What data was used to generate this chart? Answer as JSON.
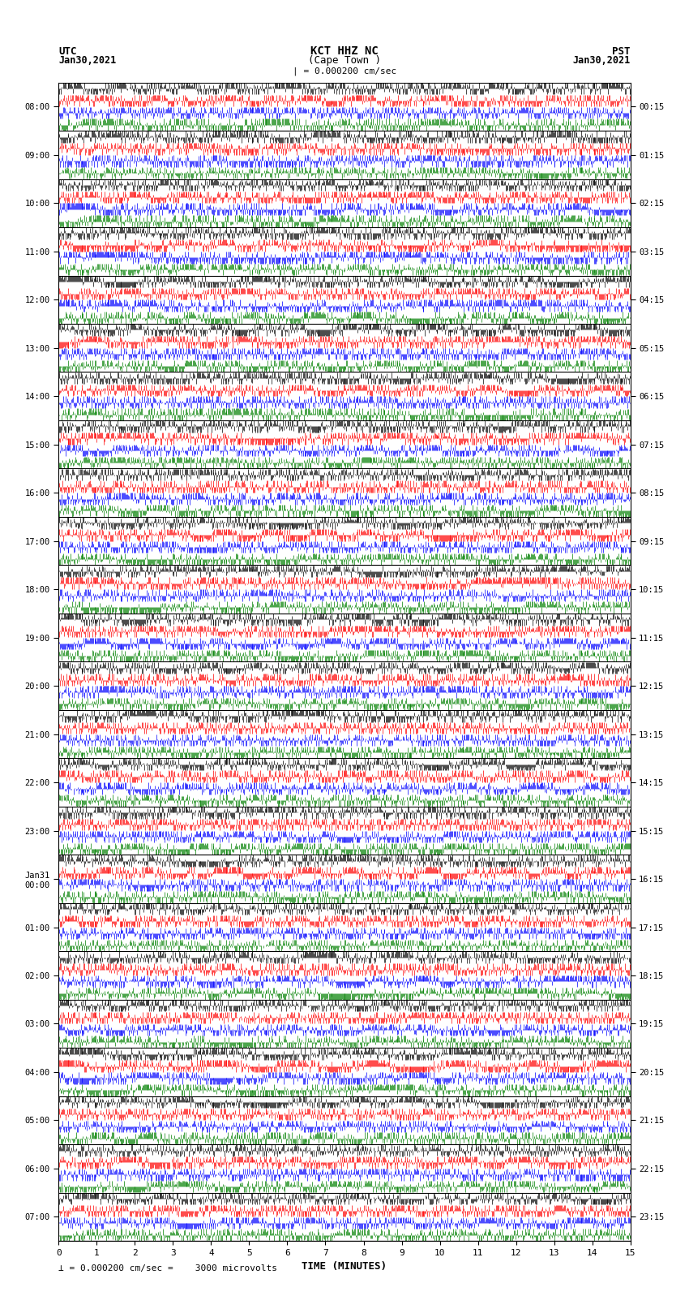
{
  "title_line1": "KCT HHZ NC",
  "title_line2": "(Cape Town )",
  "title_line3": "| = 0.000200 cm/sec",
  "label_utc": "UTC",
  "label_pst": "PST",
  "date_left": "Jan30,2021",
  "date_right": "Jan30,2021",
  "left_yticks": [
    "08:00",
    "09:00",
    "10:00",
    "11:00",
    "12:00",
    "13:00",
    "14:00",
    "15:00",
    "16:00",
    "17:00",
    "18:00",
    "19:00",
    "20:00",
    "21:00",
    "22:00",
    "23:00",
    "Jan31\n00:00",
    "01:00",
    "02:00",
    "03:00",
    "04:00",
    "05:00",
    "06:00",
    "07:00"
  ],
  "right_yticks": [
    "00:15",
    "01:15",
    "02:15",
    "03:15",
    "04:15",
    "05:15",
    "06:15",
    "07:15",
    "08:15",
    "09:15",
    "10:15",
    "11:15",
    "12:15",
    "13:15",
    "14:15",
    "15:15",
    "16:15",
    "17:15",
    "18:15",
    "19:15",
    "20:15",
    "21:15",
    "22:15",
    "23:15"
  ],
  "xlabel": "TIME (MINUTES)",
  "xticks": [
    0,
    1,
    2,
    3,
    4,
    5,
    6,
    7,
    8,
    9,
    10,
    11,
    12,
    13,
    14,
    15
  ],
  "scalebar_text": " = 0.000200 cm/sec =    3000 microvolts",
  "n_rows": 24,
  "n_cols": 750,
  "minutes_per_row": 15,
  "colors": [
    "black",
    "red",
    "blue",
    "green"
  ],
  "n_subrows": 4,
  "background_color": "white",
  "fig_width": 8.5,
  "fig_height": 16.13
}
